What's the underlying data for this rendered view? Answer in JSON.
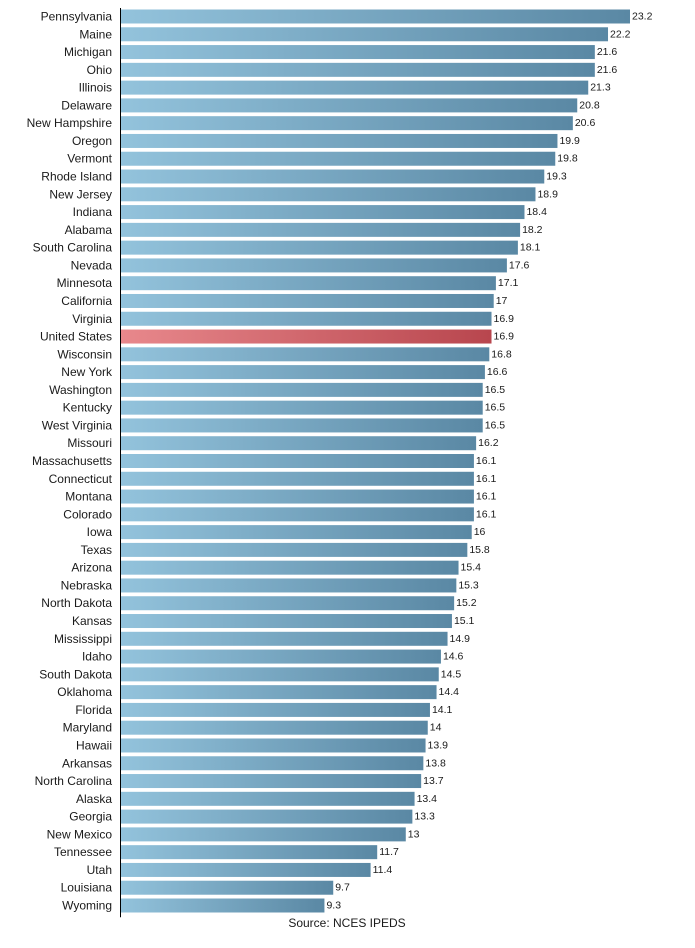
{
  "chart_data": {
    "type": "bar",
    "orientation": "horizontal",
    "categories": [
      "Pennsylvania",
      "Maine",
      "Michigan",
      "Ohio",
      "Illinois",
      "Delaware",
      "New Hampshire",
      "Oregon",
      "Vermont",
      "Rhode Island",
      "New Jersey",
      "Indiana",
      "Alabama",
      "South Carolina",
      "Nevada",
      "Minnesota",
      "California",
      "Virginia",
      "United States",
      "Wisconsin",
      "New York",
      "Washington",
      "Kentucky",
      "West Virginia",
      "Missouri",
      "Massachusetts",
      "Connecticut",
      "Montana",
      "Colorado",
      "Iowa",
      "Texas",
      "Arizona",
      "Nebraska",
      "North Dakota",
      "Kansas",
      "Mississippi",
      "Idaho",
      "South Dakota",
      "Oklahoma",
      "Florida",
      "Maryland",
      "Hawaii",
      "Arkansas",
      "North Carolina",
      "Alaska",
      "Georgia",
      "New Mexico",
      "Tennessee",
      "Utah",
      "Louisiana",
      "Wyoming"
    ],
    "values": [
      23.2,
      22.2,
      21.6,
      21.6,
      21.3,
      20.8,
      20.6,
      19.9,
      19.8,
      19.3,
      18.9,
      18.4,
      18.2,
      18.1,
      17.6,
      17.1,
      17,
      16.9,
      16.9,
      16.8,
      16.6,
      16.5,
      16.5,
      16.5,
      16.2,
      16.1,
      16.1,
      16.1,
      16.1,
      16,
      15.8,
      15.4,
      15.3,
      15.2,
      15.1,
      14.9,
      14.6,
      14.5,
      14.4,
      14.1,
      14,
      13.9,
      13.8,
      13.7,
      13.4,
      13.3,
      13,
      11.7,
      11.4,
      9.7,
      9.3
    ],
    "value_labels": [
      "23.2",
      "22.2",
      "21.6",
      "21.6",
      "21.3",
      "20.8",
      "20.6",
      "19.9",
      "19.8",
      "19.3",
      "18.9",
      "18.4",
      "18.2",
      "18.1",
      "17.6",
      "17.1",
      "17",
      "16.9",
      "16.9",
      "16.8",
      "16.6",
      "16.5",
      "16.5",
      "16.5",
      "16.2",
      "16.1",
      "16.1",
      "16.1",
      "16.1",
      "16",
      "15.8",
      "15.4",
      "15.3",
      "15.2",
      "15.1",
      "14.9",
      "14.6",
      "14.5",
      "14.4",
      "14.1",
      "14",
      "13.9",
      "13.8",
      "13.7",
      "13.4",
      "13.3",
      "13",
      "11.7",
      "11.4",
      "9.7",
      "9.3"
    ],
    "highlight": "United States",
    "xlim": [
      0,
      23.2
    ],
    "bar_color_start": "#93c3dc",
    "bar_color_end": "#5a88a4",
    "highlight_color_start": "#e8888c",
    "highlight_color_end": "#b8464e",
    "grid": false,
    "title": "",
    "xlabel": "",
    "ylabel": ""
  },
  "source": "Source: NCES IPEDS"
}
